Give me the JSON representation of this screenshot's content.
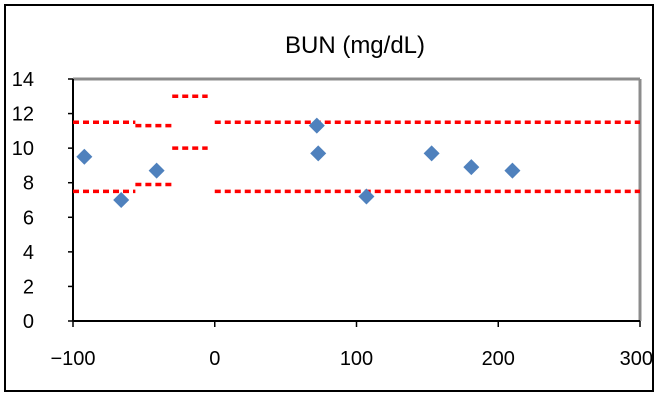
{
  "chart_data": {
    "type": "scatter",
    "title": "BUN (mg/dL)",
    "xlabel": "",
    "ylabel": "",
    "xlim": [
      -100,
      300
    ],
    "ylim": [
      0,
      14
    ],
    "x_ticks": [
      -100,
      0,
      100,
      200,
      300
    ],
    "y_ticks": [
      0,
      2,
      4,
      6,
      8,
      10,
      12,
      14
    ],
    "x_tick_labels": [
      "−100",
      "0",
      "100",
      "200",
      "300"
    ],
    "y_tick_labels": [
      "0",
      "2",
      "4",
      "6",
      "8",
      "10",
      "12",
      "14"
    ],
    "grid": false,
    "legend": "none",
    "series": [
      {
        "marker": "diamond",
        "color": "#4f81bd",
        "points": [
          {
            "x": -92,
            "y": 9.5
          },
          {
            "x": -66,
            "y": 7.0
          },
          {
            "x": -41,
            "y": 8.7
          },
          {
            "x": 72,
            "y": 11.3
          },
          {
            "x": 73,
            "y": 9.7
          },
          {
            "x": 107,
            "y": 7.2
          },
          {
            "x": 153,
            "y": 9.7
          },
          {
            "x": 181,
            "y": 8.9
          },
          {
            "x": 210,
            "y": 8.7
          }
        ]
      }
    ],
    "reference_lines": {
      "color": "#ff0000",
      "style": "dashed",
      "segments": [
        {
          "x_from": -100,
          "x_to": -56,
          "y": 11.5
        },
        {
          "x_from": -100,
          "x_to": -56,
          "y": 7.5
        },
        {
          "x_from": -56,
          "x_to": -30,
          "y": 11.3
        },
        {
          "x_from": -56,
          "x_to": -30,
          "y": 7.9
        },
        {
          "x_from": -30,
          "x_to": -5,
          "y": 13.0
        },
        {
          "x_from": -30,
          "x_to": -5,
          "y": 10.0
        },
        {
          "x_from": 0,
          "x_to": 300,
          "y": 11.5
        },
        {
          "x_from": 0,
          "x_to": 300,
          "y": 7.5
        }
      ]
    }
  }
}
